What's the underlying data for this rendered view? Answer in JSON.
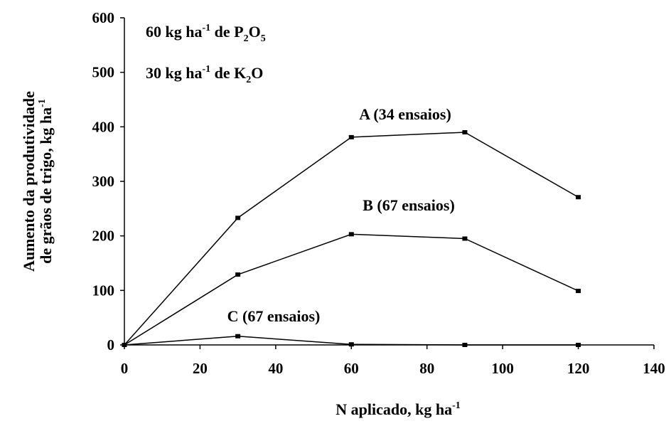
{
  "chart_data": {
    "type": "line",
    "xlabel": {
      "main": "N aplicado, kg ha",
      "sup": "-1"
    },
    "ylabel": {
      "line1": "Aumento da produtividade",
      "line2": {
        "main": "de grãos de trigo, kg ha",
        "sup": "-1"
      }
    },
    "xlim": [
      0,
      140
    ],
    "ylim": [
      0,
      600
    ],
    "xticks": [
      "0",
      "20",
      "40",
      "60",
      "80",
      "100",
      "120",
      "140"
    ],
    "yticks": [
      "0",
      "100",
      "200",
      "300",
      "400",
      "500",
      "600"
    ],
    "grid": false,
    "annotations": {
      "p": {
        "t1": "60 kg ha",
        "s1": "-1",
        "t2": " de P",
        "sub1": "2",
        "t3": "O",
        "sub2": "5"
      },
      "k": {
        "t1": "30 kg ha",
        "s1": "-1",
        "t2": " de K",
        "sub1": "2",
        "t3": "O"
      }
    },
    "series": [
      {
        "name": "A (34 ensaios)",
        "x": [
          0,
          30,
          60,
          90,
          120
        ],
        "y": [
          0,
          233,
          381,
          390,
          271
        ]
      },
      {
        "name": "B (67 ensaios)",
        "x": [
          0,
          30,
          60,
          90,
          120
        ],
        "y": [
          0,
          129,
          203,
          195,
          99
        ]
      },
      {
        "name": "C (67 ensaios)",
        "x": [
          0,
          30,
          60,
          90,
          120
        ],
        "y": [
          0,
          16,
          1,
          0,
          0
        ]
      }
    ]
  }
}
